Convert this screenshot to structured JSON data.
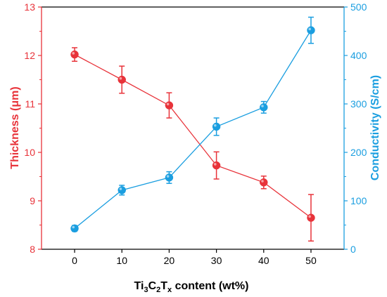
{
  "chart_data": {
    "type": "line",
    "x": [
      0,
      10,
      20,
      30,
      40,
      50
    ],
    "xticks": [
      "0",
      "10",
      "20",
      "30",
      "40",
      "50"
    ],
    "xlim": [
      -7,
      57
    ],
    "xlabel": {
      "prefix": "Ti",
      "sub1": "3",
      "mid1": "C",
      "sub2": "2",
      "mid2": "T",
      "sub3": "x",
      "suffix": " content (wt%)"
    },
    "left_axis": {
      "label": "Thickness (μm)",
      "ylim": [
        8,
        13
      ],
      "ticks": [
        "8",
        "9",
        "10",
        "11",
        "12",
        "13"
      ],
      "color": "#e8333a"
    },
    "right_axis": {
      "label": "Conductivity (S/cm)",
      "ylim": [
        0,
        500
      ],
      "ticks": [
        "0",
        "100",
        "200",
        "300",
        "400",
        "500"
      ],
      "color": "#1a9ee0"
    },
    "series": [
      {
        "axis": "left",
        "color": "#e8333a",
        "values": [
          12.02,
          11.5,
          10.97,
          9.73,
          9.38,
          8.65
        ],
        "errors": [
          0.14,
          0.28,
          0.26,
          0.28,
          0.13,
          0.48
        ]
      },
      {
        "axis": "right",
        "color": "#1a9ee0",
        "values": [
          43,
          122,
          148,
          253,
          293,
          452
        ],
        "errors": [
          6,
          10,
          12,
          18,
          12,
          27
        ]
      }
    ],
    "grid": false
  }
}
